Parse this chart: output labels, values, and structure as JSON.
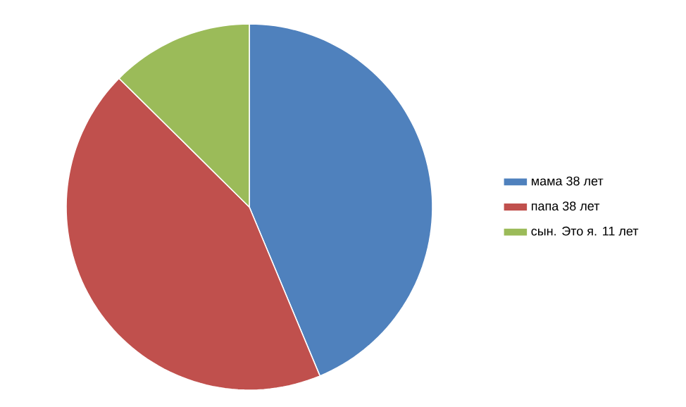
{
  "chart_data": {
    "type": "pie",
    "categories": [
      "мама 38 лет",
      "папа 38 лет",
      "сын. Это я. 11 лет"
    ],
    "values": [
      43.7,
      43.7,
      12.6
    ],
    "colors": [
      "#4f81bd",
      "#c0504d",
      "#9bbb59"
    ],
    "legend": "right"
  }
}
